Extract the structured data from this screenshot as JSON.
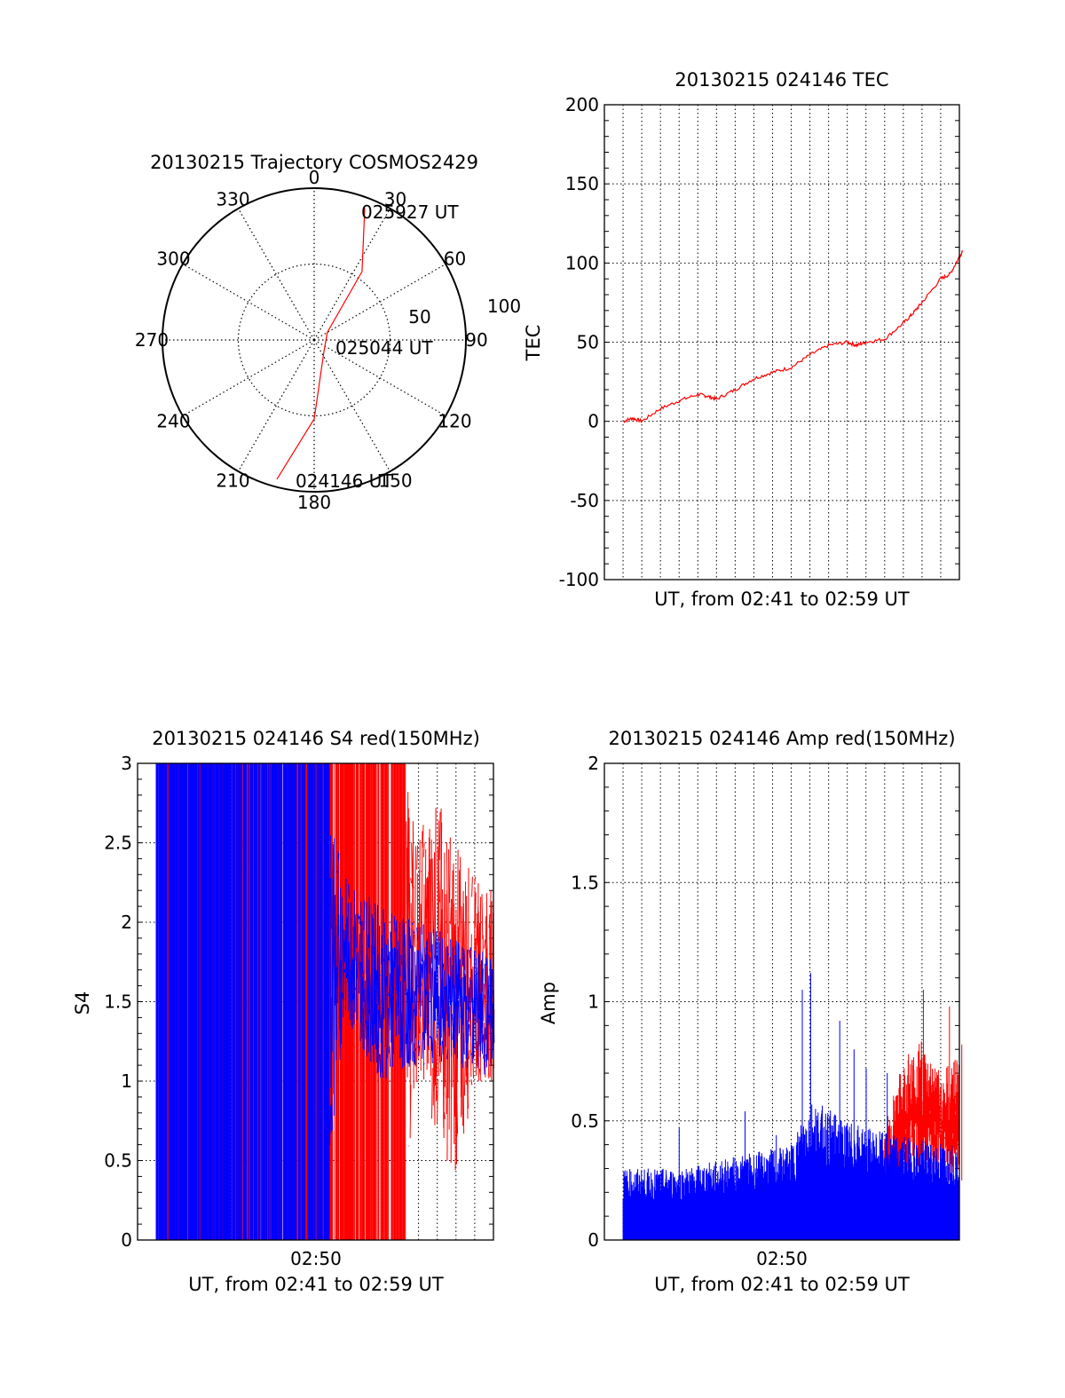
{
  "colors": {
    "red": "#ff0000",
    "blue": "#0000ff",
    "axis": "#000000"
  },
  "chart_data": [
    {
      "id": "trajectory",
      "type": "polar",
      "title": "20130215 Trajectory COSMOS2429",
      "angle_labels": [
        "0",
        "30",
        "60",
        "90",
        "120",
        "150",
        "180",
        "210",
        "240",
        "270",
        "300",
        "330"
      ],
      "radius_labels": [
        "50",
        "100"
      ],
      "elevation_rings": [
        50,
        100
      ],
      "azimuth_convention": "clockwise from top",
      "track": [
        {
          "az": 195,
          "r": 95
        },
        {
          "az": 180,
          "r": 52
        },
        {
          "az": 140,
          "r": 10
        },
        {
          "az": 60,
          "r": 10
        },
        {
          "az": 35,
          "r": 55
        },
        {
          "az": 21,
          "r": 93
        }
      ],
      "annotations": [
        {
          "text": "025927 UT",
          "near": "track end"
        },
        {
          "text": "025044 UT",
          "near": "track middle"
        },
        {
          "text": "024146 UT",
          "near": "track start"
        }
      ]
    },
    {
      "id": "tec",
      "type": "line",
      "title": "20130215 024146 TEC",
      "xlabel": "UT, from 02:41 to 02:59 UT",
      "ylabel": "TEC",
      "xlim": [
        "02:40",
        "02:59"
      ],
      "ylim": [
        -100,
        200
      ],
      "yticks": [
        "200",
        "150",
        "100",
        "50",
        "0",
        "-50",
        "-100"
      ],
      "grid": true,
      "series": [
        {
          "color": "red",
          "points": [
            [
              "02:41",
              0
            ],
            [
              "02:41:30",
              2
            ],
            [
              "02:42",
              0
            ],
            [
              "02:43",
              8
            ],
            [
              "02:44",
              13
            ],
            [
              "02:45",
              17
            ],
            [
              "02:45:30",
              16
            ],
            [
              "02:46",
              14
            ],
            [
              "02:47",
              20
            ],
            [
              "02:48",
              27
            ],
            [
              "02:49",
              31
            ],
            [
              "02:50",
              34
            ],
            [
              "02:51",
              42
            ],
            [
              "02:52",
              48
            ],
            [
              "02:53",
              50
            ],
            [
              "02:53:30",
              48
            ],
            [
              "02:54",
              50
            ],
            [
              "02:55",
              52
            ],
            [
              "02:56",
              62
            ],
            [
              "02:56:30",
              68
            ],
            [
              "02:57",
              75
            ],
            [
              "02:58",
              90
            ],
            [
              "02:58:30",
              93
            ],
            [
              "02:59",
              104
            ],
            [
              "02:59:10",
              107
            ]
          ]
        }
      ]
    },
    {
      "id": "s4",
      "type": "line",
      "title": "20130215 024146 S4 red(150MHz)",
      "xlabel": "UT, from 02:41 to 02:59 UT",
      "ylabel": "S4",
      "xtick_labels": [
        "02:50"
      ],
      "xlim": [
        "02:40",
        "02:59"
      ],
      "ylim": [
        0,
        3
      ],
      "yticks": [
        "3",
        "2.5",
        "2",
        "1.5",
        "1",
        "0.5",
        "0"
      ],
      "grid": true,
      "series": [
        {
          "color": "red",
          "description": "saturated (0-3) until ~02:54, then oscillating",
          "envelope": [
            [
              "02:41",
              0,
              3
            ],
            [
              "02:50",
              0,
              3
            ],
            [
              "02:54",
              0,
              3
            ],
            [
              "02:55",
              1.1,
              2.6
            ],
            [
              "02:56",
              0.6,
              2.8
            ],
            [
              "02:57",
              0.4,
              2.5
            ],
            [
              "02:58",
              1.0,
              2.3
            ],
            [
              "02:59",
              1.0,
              2.2
            ]
          ]
        },
        {
          "color": "blue",
          "description": "saturated (0-3) until ~02:50, then 1.0-2.2",
          "envelope": [
            [
              "02:41",
              0,
              3
            ],
            [
              "02:50",
              0,
              3
            ],
            [
              "02:51",
              1.4,
              2.3
            ],
            [
              "02:53",
              1.0,
              2.1
            ],
            [
              "02:55",
              1.1,
              2.0
            ],
            [
              "02:57",
              1.1,
              1.9
            ],
            [
              "02:59",
              1.0,
              1.8
            ]
          ]
        }
      ]
    },
    {
      "id": "amp",
      "type": "line",
      "title": "20130215 024146 Amp red(150MHz)",
      "xlabel": "UT, from 02:41 to 02:59 UT",
      "ylabel": "Amp",
      "xtick_labels": [
        "02:50"
      ],
      "xlim": [
        "02:40",
        "02:59"
      ],
      "ylim": [
        0,
        2
      ],
      "yticks": [
        "2",
        "1.5",
        "1",
        "0.5",
        "0"
      ],
      "grid": true,
      "series": [
        {
          "color": "blue",
          "description": "noise band 0-0.3 rising to 0-0.4, spikes to ~1.1 near 02:50-02:52",
          "envelope": [
            [
              "02:41",
              0.3
            ],
            [
              "02:44",
              0.3
            ],
            [
              "02:47",
              0.35
            ],
            [
              "02:50",
              0.4
            ],
            [
              "02:51",
              0.6
            ],
            [
              "02:53",
              0.5
            ],
            [
              "02:55",
              0.45
            ],
            [
              "02:57",
              0.42
            ],
            [
              "02:59",
              0.4
            ]
          ],
          "spikes": [
            [
              "02:44",
              0.47
            ],
            [
              "02:47",
              0.54
            ],
            [
              "02:49",
              0.44
            ],
            [
              "02:50",
              1.05
            ],
            [
              "02:51",
              1.12
            ],
            [
              "02:52",
              0.92
            ],
            [
              "02:53",
              0.8
            ],
            [
              "02:54",
              0.72
            ],
            [
              "02:55",
              0.7
            ]
          ]
        },
        {
          "color": "red",
          "description": "visible after ~02:55, 0.3-0.8 with spikes",
          "envelope": [
            [
              "02:55",
              0.5
            ],
            [
              "02:56",
              0.75
            ],
            [
              "02:57",
              0.85
            ],
            [
              "02:58",
              0.7
            ],
            [
              "02:59",
              0.8
            ]
          ],
          "spikes": [
            [
              "02:56",
              0.78
            ],
            [
              "02:57",
              1.05
            ],
            [
              "02:58",
              0.98
            ],
            [
              "02:59",
              0.82
            ]
          ]
        }
      ]
    }
  ]
}
